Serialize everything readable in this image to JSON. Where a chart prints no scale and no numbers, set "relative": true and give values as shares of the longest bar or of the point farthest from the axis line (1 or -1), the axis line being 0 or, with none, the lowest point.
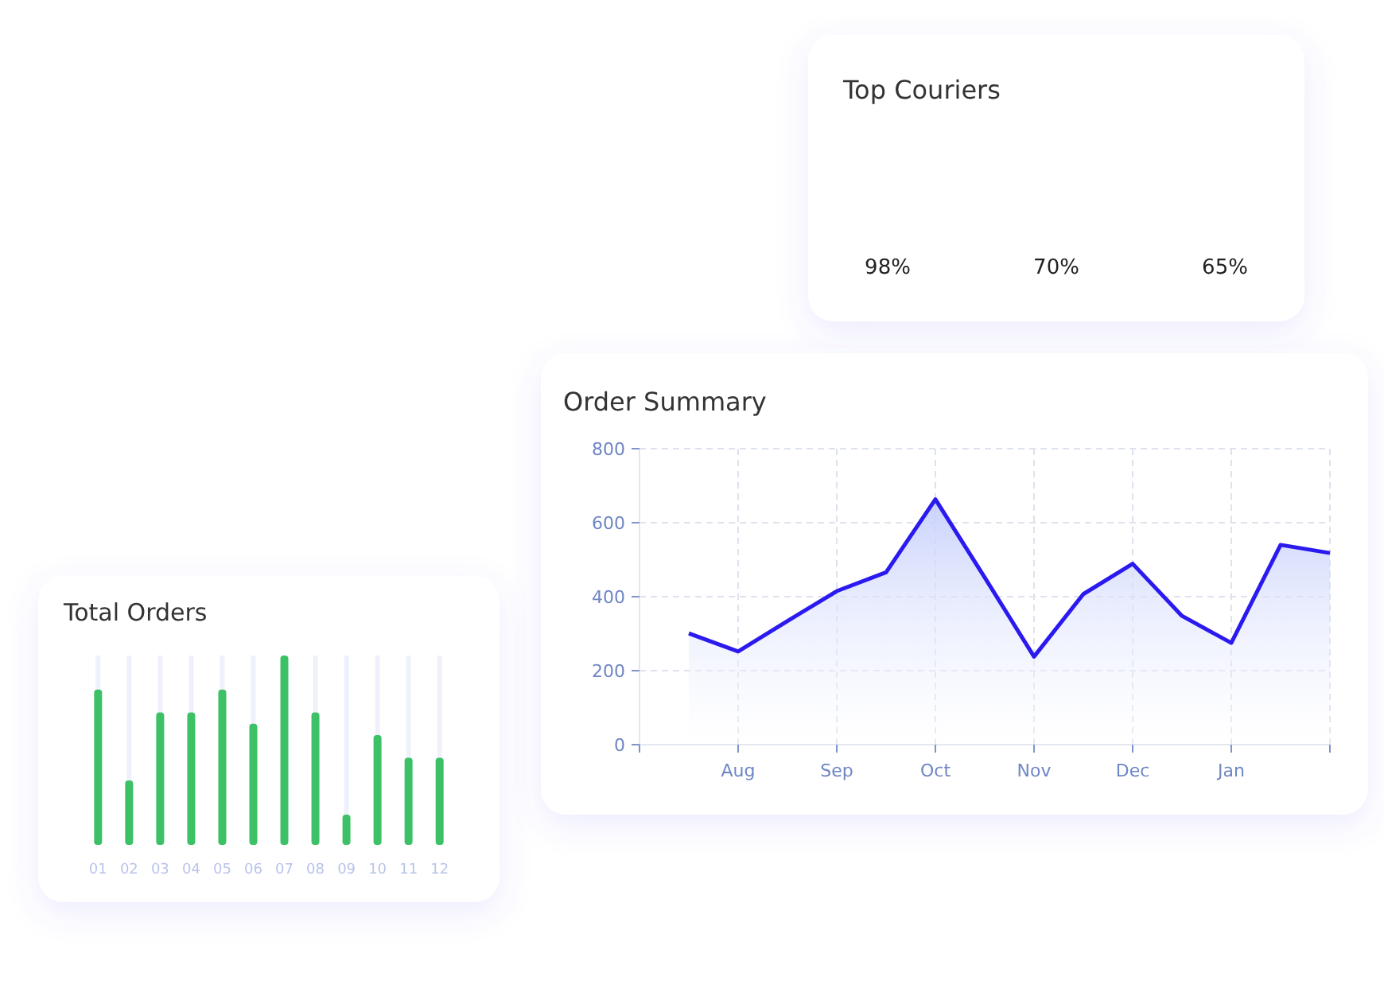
{
  "chart_data": [
    {
      "type": "other",
      "title": "Top Couriers",
      "annotations": [
        "98%",
        "70%",
        "65%"
      ]
    },
    {
      "type": "area",
      "title": "Order Summary",
      "categories": [
        null,
        null,
        "Aug",
        null,
        "Sep",
        null,
        "Oct",
        null,
        "Nov",
        null,
        "Dec",
        null,
        "Jan",
        null,
        null
      ],
      "series": [
        {
          "color": "#2b1aef",
          "values": [
            null,
            301,
            252,
            334,
            415,
            466,
            663,
            452,
            238,
            407,
            489,
            348,
            275,
            540,
            518
          ]
        }
      ],
      "ylim": [
        0,
        800
      ],
      "yticks": [
        0,
        200,
        400,
        600,
        800
      ],
      "grid": true
    },
    {
      "type": "bar",
      "title": "Total Orders",
      "relative": true,
      "categories": [
        "01",
        "02",
        "03",
        "04",
        "05",
        "06",
        "07",
        "08",
        "09",
        "10",
        "11",
        "12"
      ],
      "values": [
        0.82,
        0.34,
        0.7,
        0.7,
        0.82,
        0.64,
        1,
        0.7,
        0.16,
        0.58,
        0.46,
        0.46
      ],
      "color": "#3dc166"
    }
  ]
}
